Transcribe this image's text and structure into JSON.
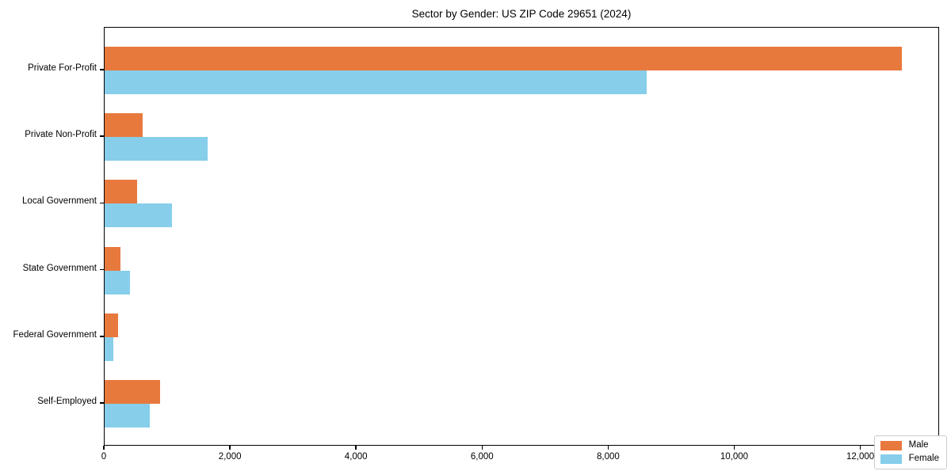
{
  "title": "Sector by Gender: US ZIP Code 29651 (2024)",
  "colors": {
    "male": "#E8793D",
    "female": "#87CEEB",
    "axis": "#000000",
    "legend_border": "#cccccc"
  },
  "legend": {
    "items": [
      {
        "label": "Male",
        "series_key": "male"
      },
      {
        "label": "Female",
        "series_key": "female"
      }
    ]
  },
  "chart_data": {
    "type": "bar",
    "orientation": "horizontal",
    "title": "Sector by Gender: US ZIP Code 29651 (2024)",
    "categories": [
      "Private For-Profit",
      "Private Non-Profit",
      "Local Government",
      "State Government",
      "Federal Government",
      "Self-Employed"
    ],
    "series": [
      {
        "name": "Male",
        "color": "#E8793D",
        "values": [
          12650,
          600,
          520,
          250,
          210,
          880
        ]
      },
      {
        "name": "Female",
        "color": "#87CEEB",
        "values": [
          8600,
          1630,
          1070,
          400,
          140,
          720
        ]
      }
    ],
    "xlabel": "",
    "ylabel": "",
    "xlim": [
      0,
      13250
    ],
    "xticks": [
      0,
      2000,
      4000,
      6000,
      8000,
      10000,
      12000
    ],
    "xtick_labels": [
      "0",
      "2,000",
      "4,000",
      "6,000",
      "8,000",
      "10,000",
      "12,000"
    ],
    "legend_position": "lower right",
    "grid": false
  }
}
